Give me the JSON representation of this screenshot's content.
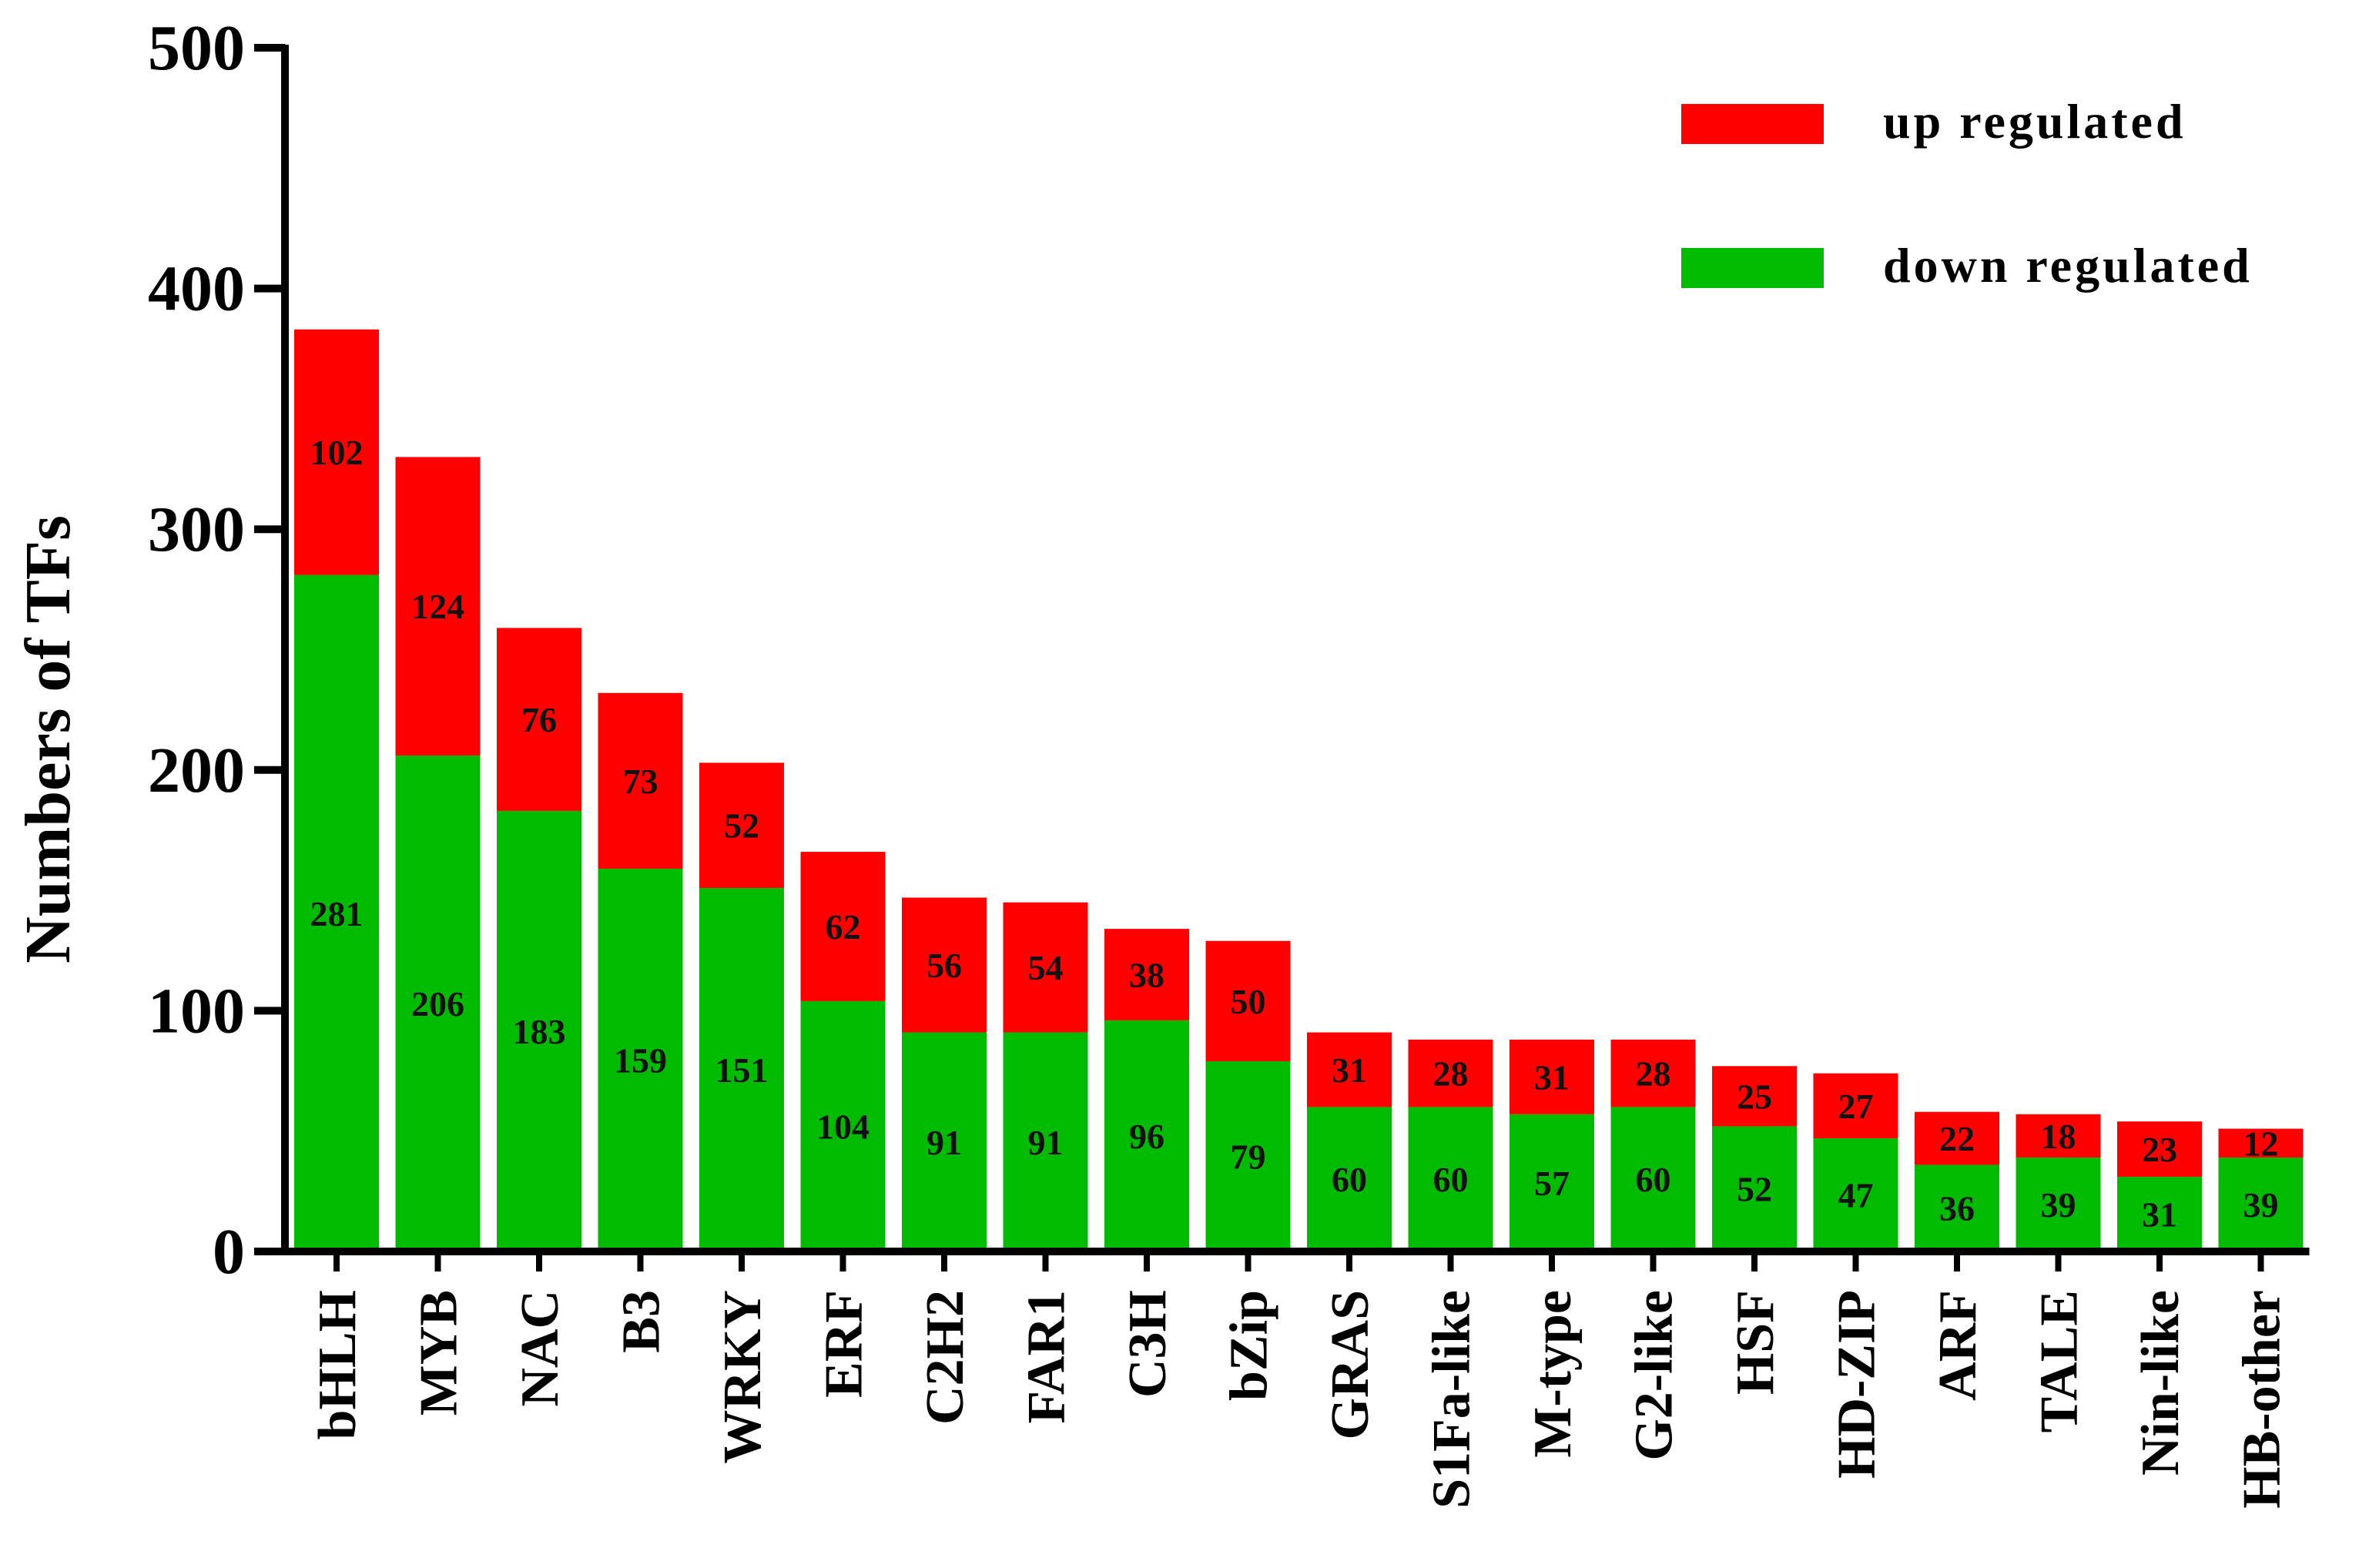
{
  "chart_data": {
    "type": "bar",
    "stacked": true,
    "categories": [
      "bHLH",
      "MYB",
      "NAC",
      "B3",
      "WRKY",
      "ERF",
      "C2H2",
      "FAR1",
      "C3H",
      "bZip",
      "GRAS",
      "S1Fa-like",
      "M-type",
      "G2-like",
      "HSF",
      "HD-ZIP",
      "ARF",
      "TALE",
      "Nin-like",
      "HB-other"
    ],
    "series": [
      {
        "name": "down regulated",
        "color": "#00bb00",
        "values": [
          281,
          206,
          183,
          159,
          151,
          104,
          91,
          91,
          96,
          79,
          60,
          60,
          57,
          60,
          52,
          47,
          36,
          39,
          31,
          39
        ]
      },
      {
        "name": "up regulated",
        "color": "#ff0000",
        "values": [
          102,
          124,
          76,
          73,
          52,
          62,
          56,
          54,
          38,
          50,
          31,
          28,
          31,
          28,
          25,
          27,
          22,
          18,
          23,
          12
        ]
      }
    ],
    "ylabel": "Numbers of TFs",
    "xlabel": "",
    "ylim": [
      0,
      500
    ],
    "yticks": [
      0,
      100,
      200,
      300,
      400,
      500
    ],
    "legend": {
      "position": "top-right",
      "order": [
        "up regulated",
        "down regulated"
      ]
    },
    "grid": false
  }
}
